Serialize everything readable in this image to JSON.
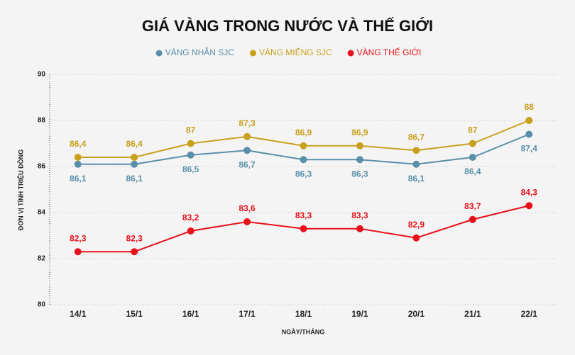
{
  "chart_data": {
    "type": "line",
    "title": "GIÁ VÀNG TRONG NƯỚC VÀ THẾ GIỚI",
    "x_label": "NGÀY/THÁNG",
    "y_label": "ĐƠN VỊ TÍNH TRIỆU ĐỒNG",
    "categories": [
      "14/1",
      "15/1",
      "16/1",
      "17/1",
      "18/1",
      "19/1",
      "20/1",
      "21/1",
      "22/1"
    ],
    "series": [
      {
        "name": "VÀNG NHẪN SJC",
        "color": "#5a8fa9",
        "values": [
          86.1,
          86.1,
          86.5,
          86.7,
          86.3,
          86.3,
          86.1,
          86.4,
          87.4
        ],
        "value_labels": [
          "86,1",
          "86,1",
          "86,5",
          "86,7",
          "86,3",
          "86,3",
          "86,1",
          "86,4",
          "87,4"
        ]
      },
      {
        "name": "VÀNG MIẾNG SJC",
        "color": "#c8a01c",
        "values": [
          86.4,
          86.4,
          87,
          87.3,
          86.9,
          86.9,
          86.7,
          87,
          88
        ],
        "value_labels": [
          "86,4",
          "86,4",
          "87",
          "87,3",
          "86,9",
          "86,9",
          "86,7",
          "87",
          "88"
        ]
      },
      {
        "name": "VÀNG THẾ GIỚI",
        "color": "#e8101a",
        "values": [
          82.3,
          82.3,
          83.2,
          83.6,
          83.3,
          83.3,
          82.9,
          83.7,
          84.3
        ],
        "value_labels": [
          "82,3",
          "82,3",
          "83,2",
          "83,6",
          "83,3",
          "83,3",
          "82,9",
          "83,7",
          "84,3"
        ]
      }
    ],
    "ylim": [
      80,
      90
    ],
    "yticks": [
      80,
      82,
      84,
      86,
      88,
      90
    ],
    "grid": true
  }
}
